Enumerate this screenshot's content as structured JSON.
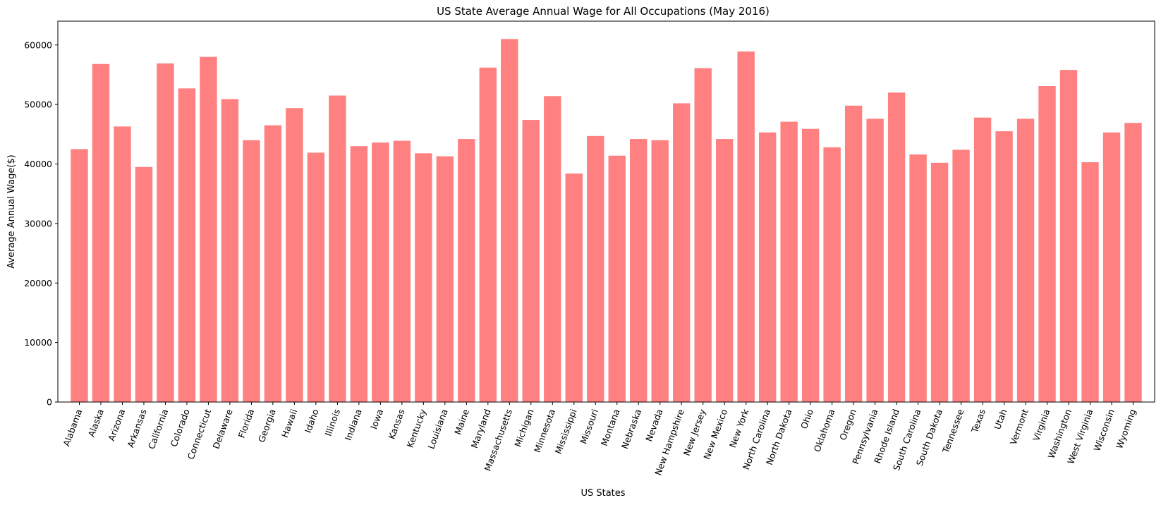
{
  "chart_data": {
    "type": "bar",
    "title": "US State Average Annual Wage for All Occupations (May 2016)",
    "xlabel": "US States",
    "ylabel": "Average Annual Wage($)",
    "ylim": [
      0,
      64000
    ],
    "yticks": [
      0,
      10000,
      20000,
      30000,
      40000,
      50000,
      60000
    ],
    "ytick_labels": [
      "0",
      "10000",
      "20000",
      "30000",
      "40000",
      "50000",
      "60000"
    ],
    "grid": false,
    "bar_color": "#ff8080",
    "categories": [
      "Alabama",
      "Alaska",
      "Arizona",
      "Arkansas",
      "California",
      "Colorado",
      "Connecticut",
      "Delaware",
      "Florida",
      "Georgia",
      "Hawaii",
      "Idaho",
      "Illinois",
      "Indiana",
      "Iowa",
      "Kansas",
      "Kentucky",
      "Louisiana",
      "Maine",
      "Maryland",
      "Massachusetts",
      "Michigan",
      "Minnesota",
      "Mississippi",
      "Missouri",
      "Montana",
      "Nebraska",
      "Nevada",
      "New Hampshire",
      "New Jersey",
      "New Mexico",
      "New York",
      "North Carolina",
      "North Dakota",
      "Ohio",
      "Oklahoma",
      "Oregon",
      "Pennsylvania",
      "Rhode Island",
      "South Carolina",
      "South Dakota",
      "Tennessee",
      "Texas",
      "Utah",
      "Vermont",
      "Virginia",
      "Washington",
      "West Virginia",
      "Wisconsin",
      "Wyoming"
    ],
    "values": [
      42500,
      56800,
      46300,
      39500,
      56900,
      52700,
      58000,
      50900,
      44000,
      46500,
      49400,
      41900,
      51500,
      43000,
      43600,
      43900,
      41800,
      41300,
      44200,
      56200,
      61000,
      47400,
      51400,
      38400,
      44700,
      41400,
      44200,
      44000,
      50200,
      56100,
      44200,
      58900,
      45300,
      47100,
      45900,
      42800,
      49800,
      47600,
      52000,
      41600,
      40200,
      42400,
      47800,
      45500,
      47600,
      53100,
      55800,
      40300,
      45300,
      46900
    ]
  }
}
